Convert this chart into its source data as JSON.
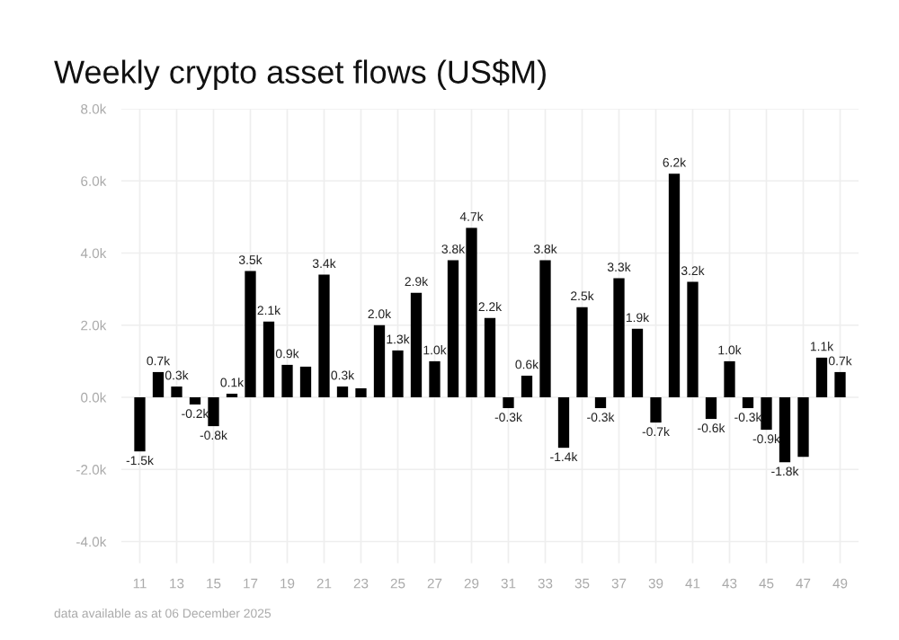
{
  "chart_data": {
    "type": "bar",
    "title": "Weekly crypto asset flows (US$M)",
    "categories": [
      "11",
      null,
      "13",
      null,
      "15",
      null,
      "17",
      null,
      "19",
      null,
      "21",
      null,
      "23",
      null,
      "25",
      null,
      "27",
      null,
      "29",
      null,
      "31",
      null,
      "33",
      null,
      "35",
      null,
      "37",
      null,
      "39",
      null,
      "41",
      null,
      "43",
      null,
      "45",
      null,
      "47",
      null,
      "49"
    ],
    "values": [
      -1.5,
      0.7,
      0.3,
      -0.2,
      -0.8,
      0.1,
      3.5,
      2.1,
      0.9,
      0.85,
      3.4,
      0.3,
      0.25,
      2.0,
      1.3,
      2.9,
      1.0,
      3.8,
      4.7,
      2.2,
      -0.3,
      0.6,
      3.8,
      -1.4,
      2.5,
      -0.3,
      3.3,
      1.9,
      -0.7,
      6.2,
      3.2,
      -0.6,
      1.0,
      -0.3,
      -0.9,
      -1.8,
      -1.65,
      1.1,
      0.7
    ],
    "value_labels": [
      "-1.5k",
      "0.7k",
      "0.3k",
      "-0.2k",
      "-0.8k",
      "0.1k",
      "3.5k",
      "2.1k",
      "0.9k",
      null,
      "3.4k",
      "0.3k",
      null,
      "2.0k",
      "1.3k",
      "2.9k",
      "1.0k",
      "3.8k",
      "4.7k",
      "2.2k",
      "-0.3k",
      "0.6k",
      "3.8k",
      "-1.4k",
      "2.5k",
      "-0.3k",
      "3.3k",
      "1.9k",
      "-0.7k",
      "6.2k",
      "3.2k",
      "-0.6k",
      "1.0k",
      "-0.3k",
      "-0.9k",
      "-1.8k",
      null,
      "1.1k",
      "0.7k"
    ],
    "color": "#000000",
    "ylim": [
      -4.6,
      8
    ],
    "yticks": [
      {
        "value": -4,
        "label": "-4.0k"
      },
      {
        "value": -2,
        "label": "-2.0k"
      },
      {
        "value": 0,
        "label": "0.0k"
      },
      {
        "value": 2,
        "label": "2.0k"
      },
      {
        "value": 4,
        "label": "4.0k"
      },
      {
        "value": 6,
        "label": "6.0k"
      },
      {
        "value": 8,
        "label": "8.0k"
      }
    ],
    "grid": true,
    "annotations": [
      "data available as at 06 December 2025"
    ]
  }
}
